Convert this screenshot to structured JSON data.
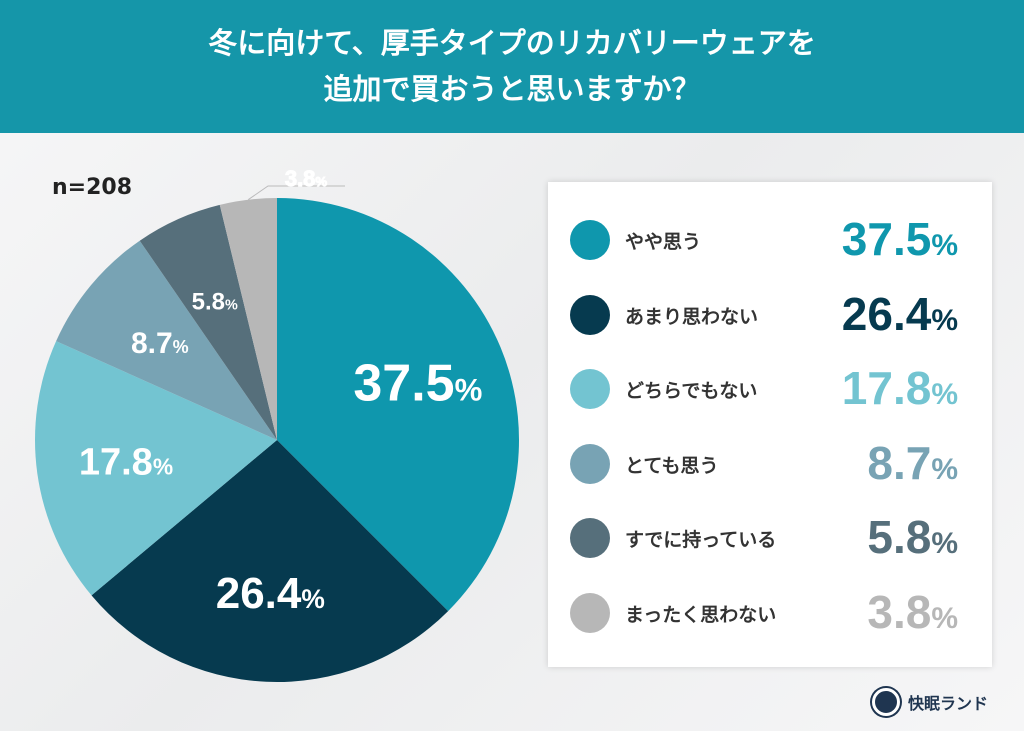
{
  "title_line1": "冬に向けて、厚手タイプのリカバリーウェアを",
  "title_line2": "追加で買おうと思いますか？",
  "sample": "n=208",
  "logo": "快眠ランド",
  "chart_data": {
    "type": "pie",
    "title": "冬に向けて、厚手タイプのリカバリーウェアを追加で買おうと思いますか？",
    "categories": [
      "やや思う",
      "あまり思わない",
      "どちらでもない",
      "とても思う",
      "すでに持っている",
      "まったく思わない"
    ],
    "values": [
      37.5,
      26.4,
      17.8,
      8.7,
      5.8,
      3.8
    ],
    "display": [
      "37.5",
      "26.4",
      "17.8",
      "8.7",
      "5.8",
      "3.8"
    ],
    "unit": "%",
    "colors": [
      "#0f97ad",
      "#063a4f",
      "#73c4d1",
      "#78a3b4",
      "#566f7b",
      "#b7b7b7"
    ],
    "legend_placement": "right"
  }
}
